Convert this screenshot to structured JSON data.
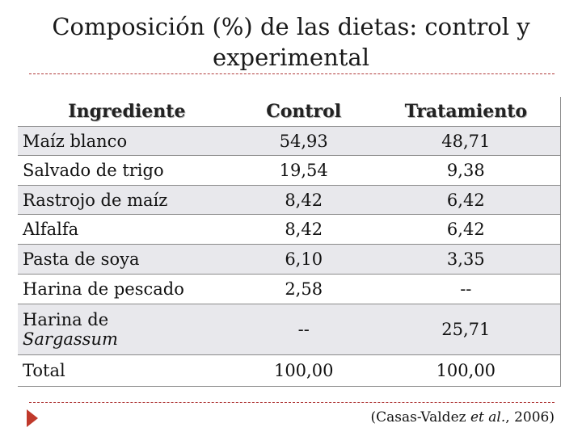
{
  "title_line1": "Composición (%) de las dietas: control y",
  "title_line2": "experimental",
  "table": {
    "headers": [
      "Ingrediente",
      "Control",
      "Tratamiento"
    ],
    "rows": [
      {
        "ingredient": "Maíz blanco",
        "control": "54,93",
        "treatment": "48,71"
      },
      {
        "ingredient": "Salvado de trigo",
        "control": "19,54",
        "treatment": "9,38"
      },
      {
        "ingredient": "Rastrojo de maíz",
        "control": "8,42",
        "treatment": "6,42"
      },
      {
        "ingredient": "Alfalfa",
        "control": "8,42",
        "treatment": "6,42"
      },
      {
        "ingredient": "Pasta de soya",
        "control": "6,10",
        "treatment": "3,35"
      },
      {
        "ingredient": "Harina de pescado",
        "control": "2,58",
        "treatment": "--"
      },
      {
        "ingredient_line1": "Harina de",
        "ingredient_line2": "Sargassum",
        "control": "--",
        "treatment": "25,71"
      },
      {
        "ingredient": "Total",
        "control": "100,00",
        "treatment": "100,00"
      }
    ]
  },
  "citation": {
    "prefix": "(Casas-Valdez ",
    "etal": "et al.",
    "suffix": ", 2006)"
  },
  "colors": {
    "row_shade": "#e8e8ec",
    "accent": "#c0392b"
  },
  "icons": {
    "bullet": "red-arrow-icon"
  }
}
